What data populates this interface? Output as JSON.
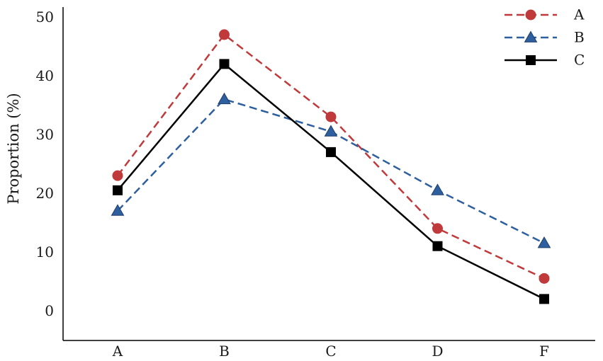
{
  "chart_data": {
    "type": "line",
    "title": "",
    "xlabel": "",
    "ylabel": "Proportion (%)",
    "categories": [
      "A",
      "B",
      "C",
      "D",
      "F"
    ],
    "yticks": [
      "0",
      "10",
      "20",
      "30",
      "40",
      "50"
    ],
    "ylim": [
      -5,
      52
    ],
    "grid": false,
    "legend_position": "top-right",
    "series": [
      {
        "name": "A",
        "values": [
          23,
          47,
          33,
          14,
          5.5
        ],
        "color": "#c0393b",
        "line_style": "dashed",
        "marker": "circle"
      },
      {
        "name": "B",
        "values": [
          17,
          36,
          30.5,
          20.5,
          11.5
        ],
        "color": "#2e5f9e",
        "line_style": "dashed",
        "marker": "triangle"
      },
      {
        "name": "C",
        "values": [
          20.5,
          42,
          27,
          11,
          2
        ],
        "color": "#000000",
        "line_style": "solid",
        "marker": "square"
      }
    ]
  }
}
